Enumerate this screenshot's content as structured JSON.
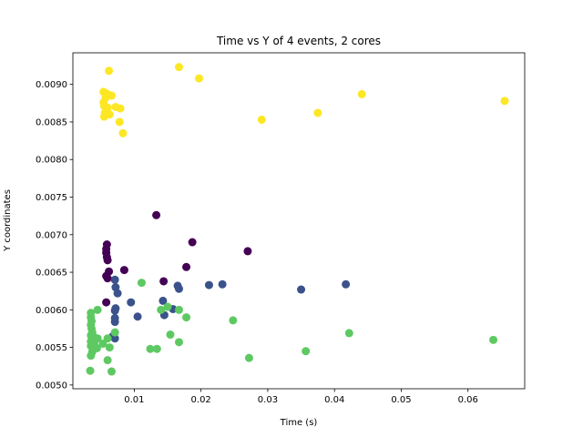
{
  "chart_data": {
    "type": "scatter",
    "title": "Time vs Y of 4 events, 2 cores",
    "xlabel": "Time (s)",
    "ylabel": "Y coordinates",
    "xlim": [
      0.0008,
      0.0685
    ],
    "ylim": [
      0.00495,
      0.00942
    ],
    "xticks": [
      0.01,
      0.02,
      0.03,
      0.04,
      0.05,
      0.06
    ],
    "xtick_labels": [
      "0.01",
      "0.02",
      "0.03",
      "0.04",
      "0.05",
      "0.06"
    ],
    "yticks": [
      0.005,
      0.0055,
      0.006,
      0.0065,
      0.007,
      0.0075,
      0.008,
      0.0085,
      0.009
    ],
    "ytick_labels": [
      "0.0050",
      "0.0055",
      "0.0060",
      "0.0065",
      "0.0070",
      "0.0075",
      "0.0080",
      "0.0085",
      "0.0090"
    ],
    "grid": false,
    "series": [
      {
        "color": "#440154",
        "points": [
          [
            0.0133,
            0.00726
          ],
          [
            0.0187,
            0.0069
          ],
          [
            0.027,
            0.00678
          ],
          [
            0.0059,
            0.00687
          ],
          [
            0.0058,
            0.00681
          ],
          [
            0.0058,
            0.00676
          ],
          [
            0.0059,
            0.0067
          ],
          [
            0.006,
            0.00666
          ],
          [
            0.0178,
            0.00657
          ],
          [
            0.0085,
            0.00653
          ],
          [
            0.0062,
            0.00651
          ],
          [
            0.0058,
            0.00645
          ],
          [
            0.006,
            0.00642
          ],
          [
            0.0144,
            0.00638
          ],
          [
            0.0058,
            0.0061
          ]
        ]
      },
      {
        "color": "#3b528b",
        "points": [
          [
            0.0071,
            0.0064
          ],
          [
            0.0072,
            0.0063
          ],
          [
            0.0075,
            0.00622
          ],
          [
            0.0165,
            0.00632
          ],
          [
            0.0167,
            0.00628
          ],
          [
            0.0212,
            0.00633
          ],
          [
            0.0232,
            0.00634
          ],
          [
            0.035,
            0.00627
          ],
          [
            0.0417,
            0.00634
          ],
          [
            0.0095,
            0.0061
          ],
          [
            0.0143,
            0.00612
          ],
          [
            0.0072,
            0.00602
          ],
          [
            0.0071,
            0.00599
          ],
          [
            0.0158,
            0.00601
          ],
          [
            0.0105,
            0.00591
          ],
          [
            0.0145,
            0.00593
          ],
          [
            0.0071,
            0.00589
          ],
          [
            0.0071,
            0.00584
          ],
          [
            0.0068,
            0.00565
          ],
          [
            0.0071,
            0.00562
          ]
        ]
      },
      {
        "color": "#5ec962",
        "points": [
          [
            0.0111,
            0.00636
          ],
          [
            0.014,
            0.006
          ],
          [
            0.015,
            0.00604
          ],
          [
            0.0167,
            0.006
          ],
          [
            0.0178,
            0.0059
          ],
          [
            0.0248,
            0.00586
          ],
          [
            0.0154,
            0.00567
          ],
          [
            0.0167,
            0.00557
          ],
          [
            0.0124,
            0.00548
          ],
          [
            0.0134,
            0.00548
          ],
          [
            0.0272,
            0.00536
          ],
          [
            0.0357,
            0.00545
          ],
          [
            0.0422,
            0.00569
          ],
          [
            0.0638,
            0.0056
          ],
          [
            0.0045,
            0.006
          ],
          [
            0.0035,
            0.00596
          ],
          [
            0.0035,
            0.0059
          ],
          [
            0.0036,
            0.00585
          ],
          [
            0.0035,
            0.0058
          ],
          [
            0.0036,
            0.00575
          ],
          [
            0.0037,
            0.0057
          ],
          [
            0.0035,
            0.00566
          ],
          [
            0.0041,
            0.00563
          ],
          [
            0.0045,
            0.00562
          ],
          [
            0.0035,
            0.00558
          ],
          [
            0.004,
            0.00555
          ],
          [
            0.0035,
            0.00552
          ],
          [
            0.0044,
            0.00549
          ],
          [
            0.0037,
            0.00544
          ],
          [
            0.0035,
            0.00539
          ],
          [
            0.0053,
            0.00555
          ],
          [
            0.006,
            0.00562
          ],
          [
            0.0063,
            0.0055
          ],
          [
            0.0071,
            0.0057
          ],
          [
            0.006,
            0.00533
          ],
          [
            0.0034,
            0.00519
          ],
          [
            0.0066,
            0.00518
          ]
        ]
      },
      {
        "color": "#fde725",
        "points": [
          [
            0.0062,
            0.00918
          ],
          [
            0.0167,
            0.00923
          ],
          [
            0.0197,
            0.00908
          ],
          [
            0.0054,
            0.0089
          ],
          [
            0.0058,
            0.00888
          ],
          [
            0.0062,
            0.00886
          ],
          [
            0.0066,
            0.00885
          ],
          [
            0.0057,
            0.00882
          ],
          [
            0.0054,
            0.00876
          ],
          [
            0.0055,
            0.00871
          ],
          [
            0.006,
            0.00869
          ],
          [
            0.0072,
            0.0087
          ],
          [
            0.0079,
            0.00868
          ],
          [
            0.0056,
            0.00862
          ],
          [
            0.0063,
            0.0086
          ],
          [
            0.0055,
            0.00857
          ],
          [
            0.0078,
            0.0085
          ],
          [
            0.0083,
            0.00835
          ],
          [
            0.0441,
            0.00887
          ],
          [
            0.0655,
            0.00878
          ],
          [
            0.0375,
            0.00862
          ],
          [
            0.0291,
            0.00853
          ]
        ]
      }
    ]
  }
}
